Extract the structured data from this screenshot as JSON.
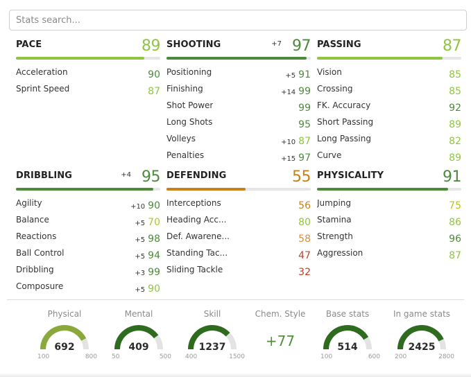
{
  "search": {
    "placeholder": "Stats search..."
  },
  "colors": {
    "light_green": "#8fc63f",
    "dark_green": "#4d8b3a",
    "darkest_green": "#2e6b1f",
    "orange": "#c8801a",
    "mid_orange": "#d48f3a",
    "red": "#c0392b",
    "track": "#e6e6e6"
  },
  "categories": [
    {
      "name": "PACE",
      "value": "89",
      "boost": "",
      "fill_percent": 89,
      "color": "#8fc63f",
      "stats": [
        {
          "label": "Acceleration",
          "value": "90",
          "boost": "",
          "color": "#4d8b3a"
        },
        {
          "label": "Sprint Speed",
          "value": "87",
          "boost": "",
          "color": "#8fc63f"
        }
      ]
    },
    {
      "name": "SHOOTING",
      "value": "97",
      "boost": "+7",
      "fill_percent": 97,
      "color": "#4d8b3a",
      "stats": [
        {
          "label": "Positioning",
          "value": "91",
          "boost": "+5",
          "color": "#4d8b3a"
        },
        {
          "label": "Finishing",
          "value": "99",
          "boost": "+14",
          "color": "#4d8b3a"
        },
        {
          "label": "Shot Power",
          "value": "99",
          "boost": "",
          "color": "#4d8b3a"
        },
        {
          "label": "Long Shots",
          "value": "95",
          "boost": "",
          "color": "#4d8b3a"
        },
        {
          "label": "Volleys",
          "value": "87",
          "boost": "+10",
          "color": "#8fc63f"
        },
        {
          "label": "Penalties",
          "value": "97",
          "boost": "+15",
          "color": "#4d8b3a"
        }
      ]
    },
    {
      "name": "PASSING",
      "value": "87",
      "boost": "",
      "fill_percent": 87,
      "color": "#8fc63f",
      "stats": [
        {
          "label": "Vision",
          "value": "85",
          "boost": "",
          "color": "#8fc63f"
        },
        {
          "label": "Crossing",
          "value": "85",
          "boost": "",
          "color": "#8fc63f"
        },
        {
          "label": "FK. Accuracy",
          "value": "92",
          "boost": "",
          "color": "#4d8b3a"
        },
        {
          "label": "Short Passing",
          "value": "89",
          "boost": "",
          "color": "#8fc63f"
        },
        {
          "label": "Long Passing",
          "value": "82",
          "boost": "",
          "color": "#8fc63f"
        },
        {
          "label": "Curve",
          "value": "89",
          "boost": "",
          "color": "#8fc63f"
        }
      ]
    },
    {
      "name": "DRIBBLING",
      "value": "95",
      "boost": "+4",
      "fill_percent": 95,
      "color": "#4d8b3a",
      "stats": [
        {
          "label": "Agility",
          "value": "90",
          "boost": "+10",
          "color": "#4d8b3a"
        },
        {
          "label": "Balance",
          "value": "70",
          "boost": "+5",
          "color": "#b6c420"
        },
        {
          "label": "Reactions",
          "value": "98",
          "boost": "+5",
          "color": "#4d8b3a"
        },
        {
          "label": "Ball Control",
          "value": "94",
          "boost": "+5",
          "color": "#4d8b3a"
        },
        {
          "label": "Dribbling",
          "value": "99",
          "boost": "+3",
          "color": "#4d8b3a"
        },
        {
          "label": "Composure",
          "value": "90",
          "boost": "+5",
          "color": "#8fc63f"
        }
      ]
    },
    {
      "name": "DEFENDING",
      "value": "55",
      "boost": "",
      "fill_percent": 55,
      "color": "#c8801a",
      "stats": [
        {
          "label": "Interceptions",
          "value": "56",
          "boost": "",
          "color": "#c8801a"
        },
        {
          "label": "Heading Acc...",
          "value": "80",
          "boost": "",
          "color": "#8fc63f"
        },
        {
          "label": "Def. Awarene...",
          "value": "58",
          "boost": "",
          "color": "#d48f3a"
        },
        {
          "label": "Standing Tac...",
          "value": "47",
          "boost": "",
          "color": "#b5472e"
        },
        {
          "label": "Sliding Tackle",
          "value": "32",
          "boost": "",
          "color": "#c0392b"
        }
      ]
    },
    {
      "name": "PHYSICALITY",
      "value": "91",
      "boost": "",
      "fill_percent": 91,
      "color": "#4d8b3a",
      "stats": [
        {
          "label": "Jumping",
          "value": "75",
          "boost": "",
          "color": "#b6c420"
        },
        {
          "label": "Stamina",
          "value": "86",
          "boost": "",
          "color": "#8fc63f"
        },
        {
          "label": "Strength",
          "value": "96",
          "boost": "",
          "color": "#4d8b3a"
        },
        {
          "label": "Aggression",
          "value": "87",
          "boost": "",
          "color": "#8fc63f"
        }
      ]
    }
  ],
  "gauges": [
    {
      "title": "Physical",
      "value": "692",
      "min": "100",
      "max": "800",
      "fraction": 0.85,
      "color": "#8aa83c"
    },
    {
      "title": "Mental",
      "value": "409",
      "min": "50",
      "max": "500",
      "fraction": 0.8,
      "color": "#2e6b1f"
    },
    {
      "title": "Skill",
      "value": "1237",
      "min": "400",
      "max": "1500",
      "fraction": 0.76,
      "color": "#2e6b1f"
    },
    {
      "title": "Chem. Style",
      "value": "+77",
      "type": "text"
    },
    {
      "title": "Base stats",
      "value": "514",
      "min": "100",
      "max": "600",
      "fraction": 0.83,
      "color": "#2e6b1f"
    },
    {
      "title": "In game stats",
      "value": "2425",
      "min": "200",
      "max": "2800",
      "fraction": 0.86,
      "color": "#2e6b1f"
    }
  ]
}
